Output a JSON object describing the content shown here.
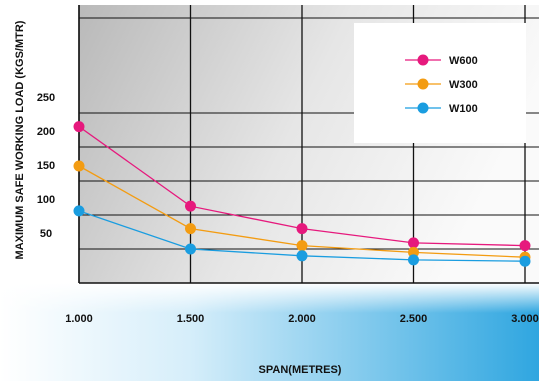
{
  "chart_data": {
    "type": "line",
    "xlabel": "SPAN(METRES)",
    "ylabel": "MAXIMUM SAFE WORKING LOAD (KGS/MTR)",
    "x": [
      1.0,
      1.5,
      2.0,
      2.5,
      3.0
    ],
    "x_tick_labels": [
      "1.000",
      "1.500",
      "2.000",
      "2.500",
      "3.000"
    ],
    "y_tick_labels": [
      "50",
      "100",
      "150",
      "200",
      "250"
    ],
    "y_ticks": [
      50,
      100,
      150,
      200,
      250
    ],
    "xlim": [
      1.0,
      3.0
    ],
    "ylim": [
      0,
      300
    ],
    "grid": true,
    "legend_position": "top-right",
    "series": [
      {
        "name": "W600",
        "color": "#e6197d",
        "values": [
          230,
          113,
          80,
          59,
          55
        ]
      },
      {
        "name": "W300",
        "color": "#f39c12",
        "values": [
          172,
          80,
          55,
          45,
          38
        ]
      },
      {
        "name": "W100",
        "color": "#1a9de0",
        "values": [
          106,
          50,
          40,
          34,
          32
        ]
      }
    ]
  }
}
